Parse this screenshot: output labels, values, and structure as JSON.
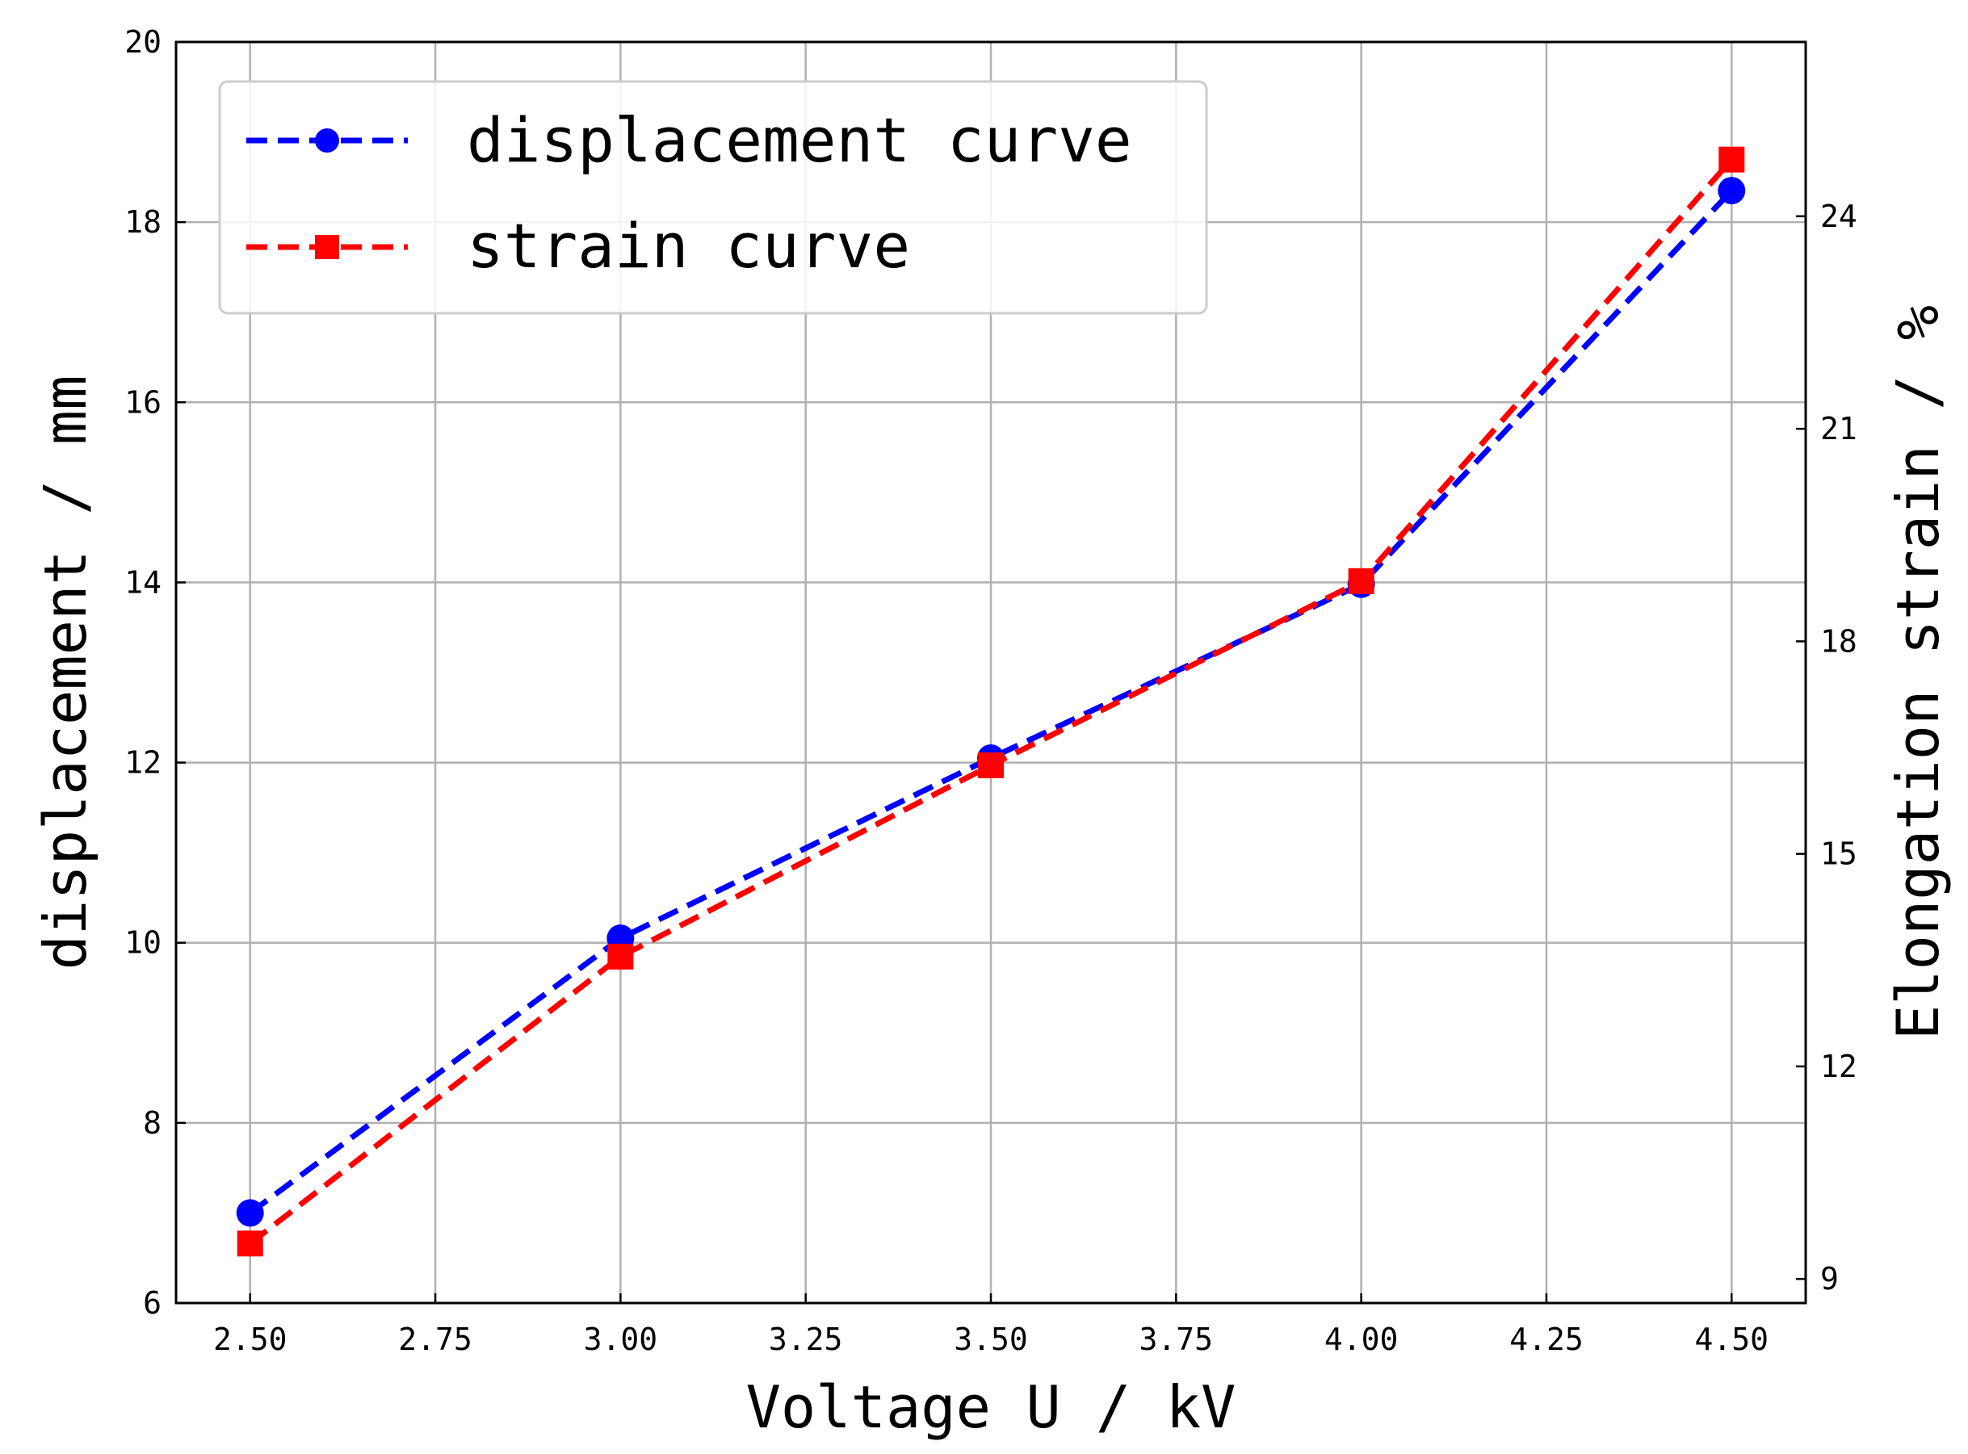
{
  "chart_data": {
    "type": "line",
    "title": "",
    "xlabel": "Voltage U / kV",
    "ylabel": "displacement / mm",
    "y2label": "Elongation strain / %",
    "xlim": [
      2.4,
      4.6
    ],
    "ylim": [
      6,
      20
    ],
    "y2lim": [
      8.66,
      26.46
    ],
    "xticks": [
      "2.50",
      "2.75",
      "3.00",
      "3.25",
      "3.50",
      "3.75",
      "4.00",
      "4.25",
      "4.50"
    ],
    "xtick_values": [
      2.5,
      2.75,
      3.0,
      3.25,
      3.5,
      3.75,
      4.0,
      4.25,
      4.5
    ],
    "yticks": [
      "6",
      "8",
      "10",
      "12",
      "14",
      "16",
      "18",
      "20"
    ],
    "ytick_values": [
      6,
      8,
      10,
      12,
      14,
      16,
      18,
      20
    ],
    "y2ticks": [
      "9",
      "12",
      "15",
      "18",
      "21",
      "24"
    ],
    "y2tick_values": [
      9,
      12,
      15,
      18,
      21,
      24
    ],
    "grid": true,
    "legend_position": "top-left",
    "series": [
      {
        "name": "displacement curve",
        "axis": "left",
        "color": "#0000ff",
        "marker": "circle",
        "x": [
          2.5,
          3.0,
          3.5,
          4.0,
          4.5
        ],
        "values": [
          7.0,
          10.05,
          12.05,
          13.98,
          18.35
        ]
      },
      {
        "name": "strain curve",
        "axis": "right",
        "color": "#ff0000",
        "marker": "square",
        "x": [
          2.5,
          3.0,
          3.5,
          4.0,
          4.5
        ],
        "values": [
          9.5,
          13.55,
          16.25,
          18.85,
          24.8
        ]
      }
    ]
  }
}
